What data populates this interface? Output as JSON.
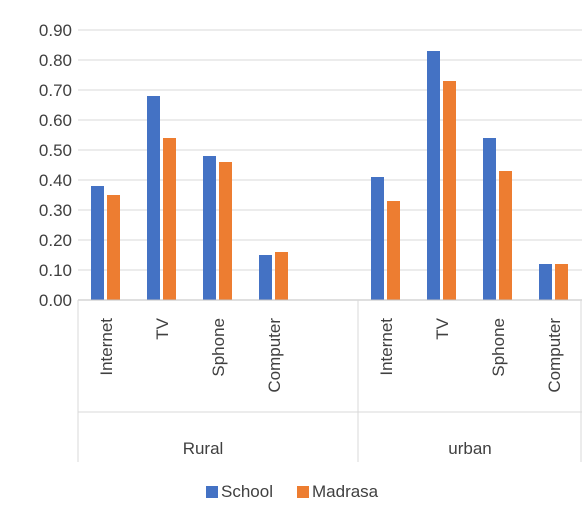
{
  "chart_data": {
    "type": "bar",
    "title": "",
    "xlabel": "",
    "ylabel": "",
    "ylim": [
      0,
      0.9
    ],
    "yticks": [
      "0.00",
      "0.10",
      "0.20",
      "0.30",
      "0.40",
      "0.50",
      "0.60",
      "0.70",
      "0.80",
      "0.90"
    ],
    "grid": true,
    "legend_position": "bottom",
    "groups": [
      {
        "name": "Rural",
        "categories": [
          "Internet",
          "TV",
          "Sphone",
          "Computer"
        ]
      },
      {
        "name": "urban",
        "categories": [
          "Internet",
          "TV",
          "Sphone",
          "Computer"
        ]
      }
    ],
    "series": [
      {
        "name": "School",
        "color": "#4472C4",
        "values": [
          0.38,
          0.68,
          0.48,
          0.15,
          0.41,
          0.83,
          0.54,
          0.12
        ]
      },
      {
        "name": "Madrasa",
        "color": "#ED7D31",
        "values": [
          0.35,
          0.54,
          0.46,
          0.16,
          0.33,
          0.73,
          0.43,
          0.12
        ]
      }
    ]
  }
}
